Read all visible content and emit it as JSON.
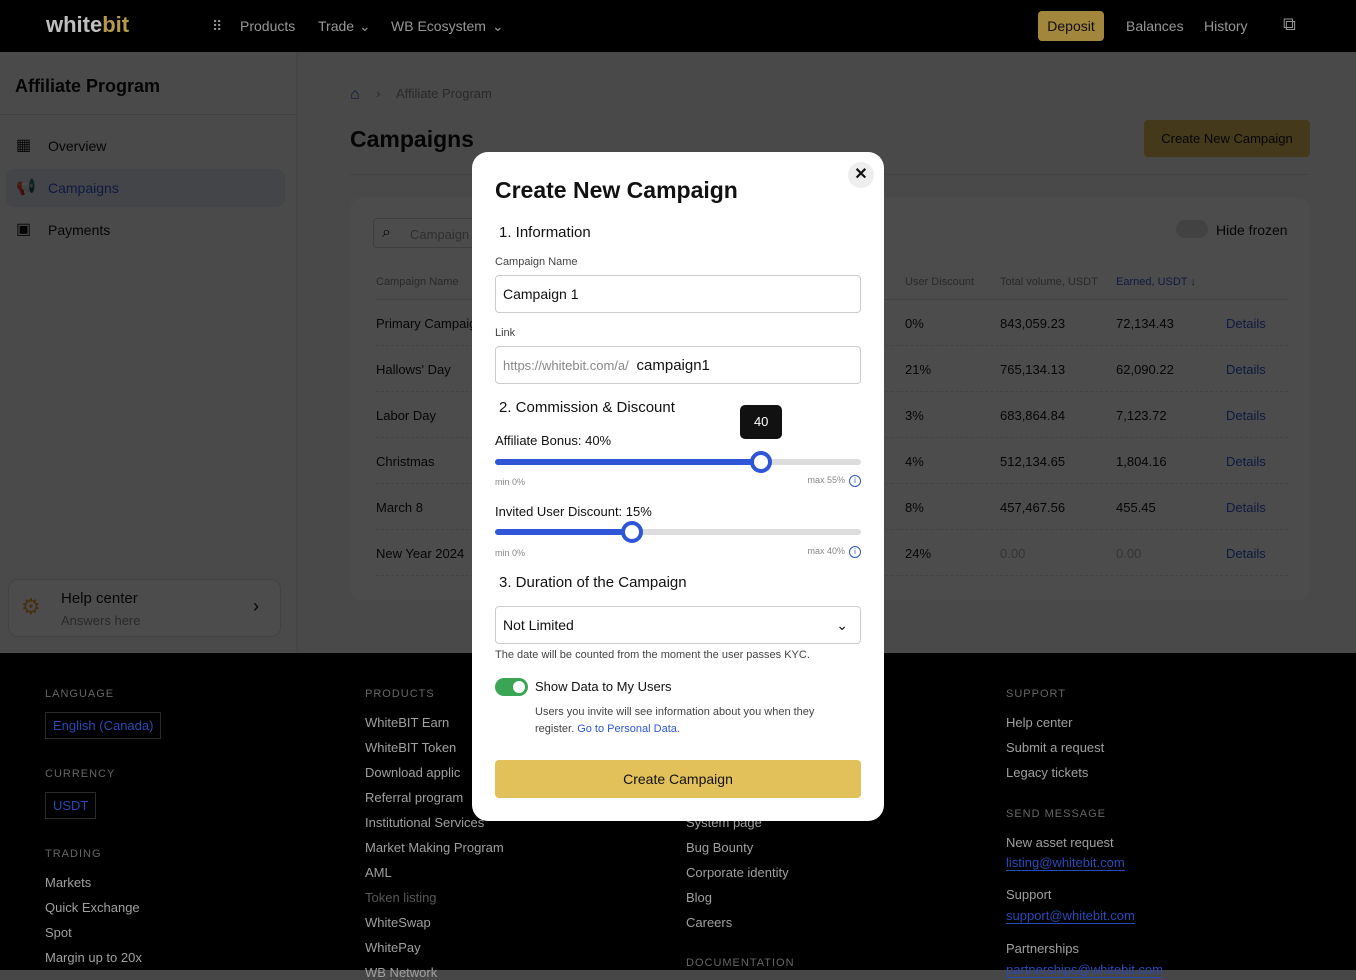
{
  "header": {
    "logo_main": "white",
    "logo_accent": "bit",
    "nav": [
      "Products",
      "Trade",
      "WB Ecosystem"
    ],
    "deposit": "Deposit",
    "balances": "Balances",
    "history": "History"
  },
  "sidebar": {
    "title": "Affiliate Program",
    "items": [
      {
        "label": "Overview",
        "icon": "grid-icon"
      },
      {
        "label": "Campaigns",
        "icon": "megaphone-icon"
      },
      {
        "label": "Payments",
        "icon": "cash-icon"
      }
    ],
    "help_title": "Help center",
    "help_sub": "Answers here"
  },
  "main": {
    "breadcrumb": "Affiliate Program",
    "title": "Campaigns",
    "create_button": "Create New Campaign",
    "search_placeholder": "Campaign",
    "hide_frozen": "Hide frozen",
    "columns": [
      "Campaign Name",
      "User Discount",
      "Total volume, USDT",
      "Earned, USDT ↓"
    ],
    "rows": [
      {
        "name": "Primary Campaign",
        "discount": "0%",
        "volume": "843,059.23",
        "earned": "72,134.43",
        "action": "Details"
      },
      {
        "name": "Hallows' Day",
        "discount": "21%",
        "volume": "765,134.13",
        "earned": "62,090.22",
        "action": "Details"
      },
      {
        "name": "Labor Day",
        "discount": "3%",
        "volume": "683,864.84",
        "earned": "7,123.72",
        "action": "Details"
      },
      {
        "name": "Christmas",
        "discount": "4%",
        "volume": "512,134.65",
        "earned": "1,804.16",
        "action": "Details"
      },
      {
        "name": "March 8",
        "discount": "8%",
        "volume": "457,467.56",
        "earned": "455.45",
        "action": "Details"
      },
      {
        "name": "New Year 2024",
        "discount": "24%",
        "volume": "0.00",
        "earned": "0.00",
        "action": "Details"
      }
    ]
  },
  "footer": {
    "language_h": "LANGUAGE",
    "language": "English (Canada)",
    "currency_h": "CURRENCY",
    "currency": "USDT",
    "trading_h": "TRADING",
    "trading": [
      "Markets",
      "Quick Exchange",
      "Spot",
      "Margin up to 20x"
    ],
    "products_h": "PRODUCTS",
    "products": [
      "WhiteBIT Earn",
      "WhiteBIT Token",
      "Download applic",
      "Referral program",
      "Institutional Services",
      "Market Making Program",
      "AML",
      "Token listing",
      "WhiteSwap",
      "WhitePay",
      "WB Network"
    ],
    "col3": [
      "System page",
      "Bug Bounty",
      "Corporate identity",
      "Blog",
      "Careers"
    ],
    "documentation_h": "DOCUMENTATION",
    "support_h": "SUPPORT",
    "support": [
      "Help center",
      "Submit a request",
      "Legacy tickets"
    ],
    "send_h": "SEND MESSAGE",
    "asset": "New asset request",
    "asset_mail": "listing@whitebit.com",
    "support_l": "Support",
    "support_mail": "support@whitebit.com",
    "partner": "Partnerships",
    "partner_mail": "partnerships@whitebit.com"
  },
  "modal": {
    "title": "Create New Campaign",
    "s1": "1. Information",
    "name_label": "Campaign Name",
    "name_value": "Campaign 1",
    "link_label": "Link",
    "link_prefix": "https://whitebit.com/a/",
    "link_value": "campaign1",
    "s2": "2. Commission & Discount",
    "bonus_label": "Affiliate Bonus: 40%",
    "bonus_value": 40,
    "bonus_max": 55,
    "bonus_tooltip": "40",
    "bonus_min_l": "min 0%",
    "bonus_max_l": "max 55%",
    "discount_label": "Invited User Discount: 15%",
    "discount_value": 15,
    "discount_max": 40,
    "discount_min_l": "min 0%",
    "discount_max_l": "max 40%",
    "s3": "3. Duration of the Campaign",
    "duration": "Not Limited",
    "duration_note": "The date will be counted from the moment the user passes KYC.",
    "toggle_label": "Show Data to My Users",
    "toggle_on": true,
    "toggle_note": "Users you invite will see information about you when they register.",
    "toggle_link": "Go to Personal Data.",
    "submit": "Create Campaign"
  },
  "colors": {
    "accent": "#2f56d6",
    "brand": "#e2c15a",
    "toggle": "#3aa655"
  }
}
